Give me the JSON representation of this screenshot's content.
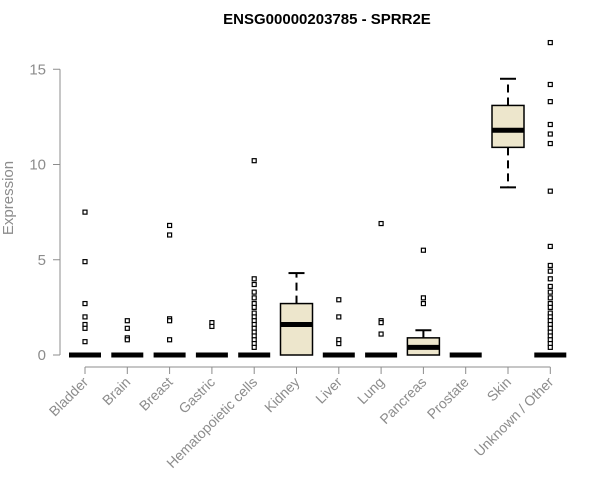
{
  "chart_data": {
    "type": "box",
    "title": "ENSG00000203785 - SPRR2E",
    "xlabel": "",
    "ylabel": "Expression",
    "ylim": [
      0,
      16.5
    ],
    "yticks": [
      0,
      5,
      10,
      15
    ],
    "box_fill": "#ede6cc",
    "categories": [
      "Bladder",
      "Brain",
      "Breast",
      "Gastric",
      "Hematopoietic cells",
      "Kidney",
      "Liver",
      "Lung",
      "Pancreas",
      "Prostate",
      "Skin",
      "Unknown / Other"
    ],
    "boxes": [
      {
        "q1": 0,
        "median": 0,
        "q3": 0,
        "whisker_low": 0,
        "whisker_high": 0,
        "outliers": [
          7.5,
          4.9,
          2.7,
          2.0,
          1.6,
          1.4,
          0.7
        ]
      },
      {
        "q1": 0,
        "median": 0,
        "q3": 0,
        "whisker_low": 0,
        "whisker_high": 0,
        "outliers": [
          1.8,
          1.4,
          0.9,
          0.8
        ]
      },
      {
        "q1": 0,
        "median": 0,
        "q3": 0,
        "whisker_low": 0,
        "whisker_high": 0,
        "outliers": [
          6.8,
          6.3,
          1.9,
          1.8,
          0.8
        ]
      },
      {
        "q1": 0,
        "median": 0,
        "q3": 0,
        "whisker_low": 0,
        "whisker_high": 0,
        "outliers": [
          1.7,
          1.5
        ]
      },
      {
        "q1": 0,
        "median": 0,
        "q3": 0,
        "whisker_low": 0,
        "whisker_high": 0,
        "outliers": [
          10.2,
          4.0,
          3.7,
          3.3,
          3.0,
          2.7,
          2.5,
          2.2,
          2.0,
          1.8,
          1.6,
          1.4,
          1.2,
          1.0,
          0.8,
          0.6,
          0.4
        ]
      },
      {
        "q1": 0,
        "median": 1.6,
        "q3": 2.7,
        "whisker_low": 0,
        "whisker_high": 4.3,
        "outliers": []
      },
      {
        "q1": 0,
        "median": 0,
        "q3": 0,
        "whisker_low": 0,
        "whisker_high": 0,
        "outliers": [
          2.9,
          2.0,
          0.8,
          0.6
        ]
      },
      {
        "q1": 0,
        "median": 0,
        "q3": 0,
        "whisker_low": 0,
        "whisker_high": 0,
        "outliers": [
          6.9,
          1.8,
          1.7,
          1.1
        ]
      },
      {
        "q1": 0,
        "median": 0.4,
        "q3": 0.9,
        "whisker_low": 0,
        "whisker_high": 1.3,
        "outliers": [
          5.5,
          3.0,
          2.7
        ]
      },
      {
        "q1": 0,
        "median": 0,
        "q3": 0,
        "whisker_low": 0,
        "whisker_high": 0,
        "outliers": []
      },
      {
        "q1": 10.9,
        "median": 11.8,
        "q3": 13.1,
        "whisker_low": 8.8,
        "whisker_high": 14.5,
        "outliers": []
      },
      {
        "q1": 0,
        "median": 0,
        "q3": 0,
        "whisker_low": 0,
        "whisker_high": 0,
        "outliers": [
          16.4,
          14.2,
          13.3,
          12.1,
          11.6,
          11.1,
          8.6,
          5.7,
          4.7,
          4.4,
          4.0,
          3.6,
          3.3,
          3.0,
          2.7,
          2.5,
          2.2,
          2.0,
          1.8,
          1.6,
          1.4,
          1.2,
          1.0,
          0.8,
          0.6,
          0.4
        ]
      }
    ]
  }
}
